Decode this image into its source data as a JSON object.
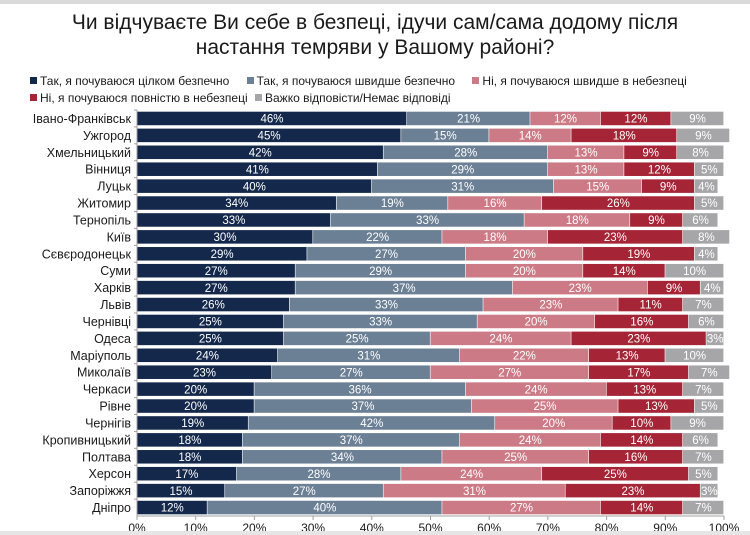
{
  "chart_data": {
    "type": "bar",
    "orientation": "horizontal",
    "stacked": "percent",
    "title": "Чи відчуваєте Ви себе в безпеці, ідучи сам/сама додому після настання темряви у Вашому районі?",
    "title_lines": [
      "Чи відчуваєте Ви себе в безпеці, ідучи сам/сама додому після",
      "настання темряви у Вашому районі?"
    ],
    "xlabel": "",
    "ylabel": "",
    "xlim": [
      0,
      100
    ],
    "x_ticks": [
      "0%",
      "10%",
      "20%",
      "30%",
      "40%",
      "50%",
      "60%",
      "70%",
      "80%",
      "90%",
      "100%"
    ],
    "legend_position": "top",
    "grid": false,
    "categories": [
      "Івано-Франківськ",
      "Ужгород",
      "Хмельницький",
      "Вінниця",
      "Луцьк",
      "Житомир",
      "Тернопіль",
      "Київ",
      "Сєвєродонецьк",
      "Суми",
      "Харків",
      "Львів",
      "Чернівці",
      "Одеса",
      "Маріуполь",
      "Миколаїв",
      "Черкаси",
      "Рівне",
      "Чернігів",
      "Кропивницький",
      "Полтава",
      "Херсон",
      "Запоріжжя",
      "Дніпро"
    ],
    "series": [
      {
        "name": "Так, я почуваюся цілком безпечно",
        "color": "#14284b",
        "values": [
          46,
          45,
          42,
          41,
          40,
          34,
          33,
          30,
          29,
          27,
          27,
          26,
          25,
          25,
          24,
          23,
          20,
          20,
          19,
          18,
          18,
          17,
          15,
          12
        ]
      },
      {
        "name": "Так, я почуваюся швидше безпечно",
        "color": "#6b7f95",
        "values": [
          21,
          15,
          28,
          29,
          31,
          19,
          33,
          22,
          27,
          29,
          37,
          33,
          33,
          25,
          31,
          27,
          36,
          37,
          42,
          37,
          34,
          28,
          27,
          40
        ]
      },
      {
        "name": "Ні, я почуваюся швидше в небезпеці",
        "color": "#cc7a86",
        "values": [
          12,
          14,
          13,
          13,
          15,
          16,
          18,
          18,
          20,
          20,
          23,
          23,
          20,
          24,
          22,
          27,
          24,
          25,
          20,
          24,
          25,
          24,
          31,
          27
        ]
      },
      {
        "name": "Ні, я почуваюся повністю в небезпеці",
        "color": "#a52436",
        "values": [
          12,
          18,
          9,
          12,
          9,
          26,
          9,
          23,
          19,
          14,
          9,
          11,
          16,
          23,
          13,
          17,
          13,
          13,
          10,
          14,
          16,
          25,
          23,
          14
        ]
      },
      {
        "name": "Важко відповісти/Немає відповіді",
        "color": "#a6a6a8",
        "values": [
          9,
          9,
          8,
          5,
          4,
          5,
          6,
          8,
          4,
          10,
          4,
          7,
          6,
          3,
          10,
          7,
          7,
          5,
          9,
          6,
          7,
          5,
          3,
          7
        ]
      }
    ]
  }
}
